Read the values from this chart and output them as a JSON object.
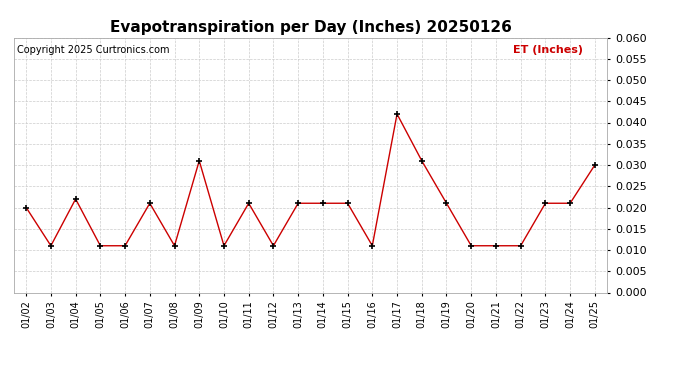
{
  "title": "Evapotranspiration per Day (Inches) 20250126",
  "copyright_text": "Copyright 2025 Curtronics.com",
  "legend_label": "ET (Inches)",
  "dates": [
    "01/02",
    "01/03",
    "01/04",
    "01/05",
    "01/06",
    "01/07",
    "01/08",
    "01/09",
    "01/10",
    "01/11",
    "01/12",
    "01/13",
    "01/14",
    "01/15",
    "01/16",
    "01/17",
    "01/18",
    "01/19",
    "01/20",
    "01/21",
    "01/22",
    "01/23",
    "01/24",
    "01/25"
  ],
  "values": [
    0.02,
    0.011,
    0.022,
    0.011,
    0.011,
    0.021,
    0.011,
    0.031,
    0.011,
    0.021,
    0.011,
    0.021,
    0.021,
    0.021,
    0.011,
    0.042,
    0.031,
    0.021,
    0.011,
    0.011,
    0.011,
    0.021,
    0.021,
    0.03
  ],
  "line_color": "#cc0000",
  "marker_color": "#000000",
  "title_fontsize": 11,
  "copyright_fontsize": 7,
  "legend_fontsize": 8,
  "legend_color": "#cc0000",
  "ylim": [
    0.0,
    0.06
  ],
  "ytick_step": 0.005,
  "background_color": "#ffffff",
  "grid_color": "#cccccc",
  "tick_fontsize": 7,
  "ytick_fontsize": 8
}
